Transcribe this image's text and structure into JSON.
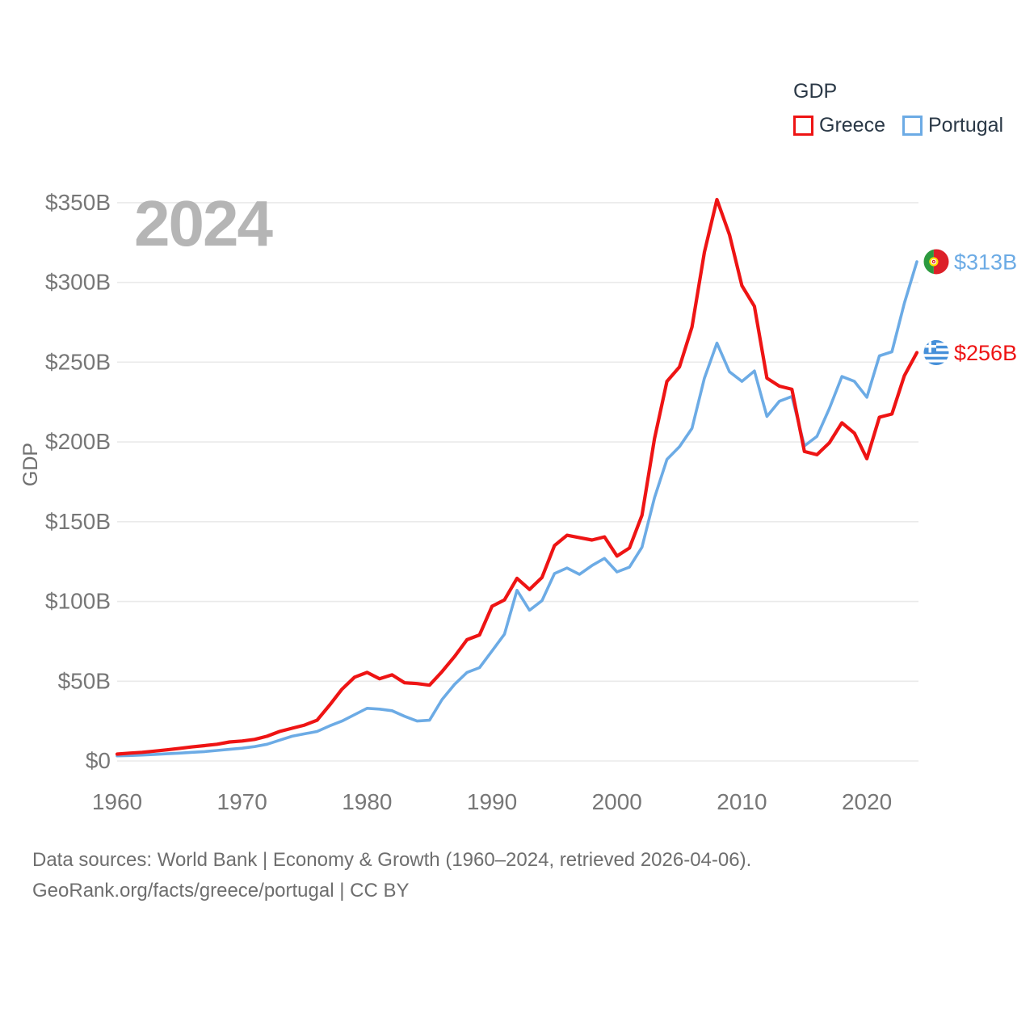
{
  "legend": {
    "title": "GDP",
    "items": [
      {
        "label": "Greece",
        "color": "#ee1414"
      },
      {
        "label": "Portugal",
        "color": "#6cabe5"
      }
    ]
  },
  "footer": {
    "line1": "Data sources: World Bank | Economy & Growth (1960–2024, retrieved 2026-04-06).",
    "line2": "GeoRank.org/facts/greece/portugal | CC BY"
  },
  "chart_data": {
    "type": "line",
    "title": "GDP",
    "ylabel": "GDP",
    "watermark": "2024",
    "grid": "horizontal",
    "legend_position": "top-right",
    "ylim": [
      0,
      350
    ],
    "x_ticks": [
      1960,
      1970,
      1980,
      1990,
      2000,
      2010,
      2020
    ],
    "y_ticks": [
      {
        "value": 0,
        "label": "$0"
      },
      {
        "value": 50,
        "label": "$50B"
      },
      {
        "value": 100,
        "label": "$100B"
      },
      {
        "value": 150,
        "label": "$150B"
      },
      {
        "value": 200,
        "label": "$200B"
      },
      {
        "value": 250,
        "label": "$250B"
      },
      {
        "value": 300,
        "label": "$300B"
      },
      {
        "value": 350,
        "label": "$350B"
      }
    ],
    "x": [
      1960,
      1961,
      1962,
      1963,
      1964,
      1965,
      1966,
      1967,
      1968,
      1969,
      1970,
      1971,
      1972,
      1973,
      1974,
      1975,
      1976,
      1977,
      1978,
      1979,
      1980,
      1981,
      1982,
      1983,
      1984,
      1985,
      1986,
      1987,
      1988,
      1989,
      1990,
      1991,
      1992,
      1993,
      1994,
      1995,
      1996,
      1997,
      1998,
      1999,
      2000,
      2001,
      2002,
      2003,
      2004,
      2005,
      2006,
      2007,
      2008,
      2009,
      2010,
      2011,
      2012,
      2013,
      2014,
      2015,
      2016,
      2017,
      2018,
      2019,
      2020,
      2021,
      2022,
      2023,
      2024
    ],
    "series": [
      {
        "name": "Greece",
        "color": "#ee1414",
        "flag": "greece",
        "end_label": "$256B",
        "line_width": 4.2,
        "values": [
          4.3,
          4.9,
          5.4,
          6.2,
          7.0,
          7.9,
          8.8,
          9.6,
          10.5,
          11.9,
          12.5,
          13.5,
          15.5,
          18.5,
          20.5,
          22.5,
          25.5,
          35.0,
          45.0,
          52.5,
          55.5,
          51.5,
          54.0,
          49.0,
          48.5,
          47.5,
          56.0,
          65.5,
          76.0,
          79.0,
          97.0,
          101.0,
          114.5,
          107.5,
          115.0,
          135.0,
          141.5,
          140.0,
          138.5,
          140.5,
          128.5,
          133.5,
          154.0,
          202.0,
          238.0,
          247.0,
          272.0,
          319.0,
          352.0,
          330.0,
          298.0,
          285.0,
          240.0,
          235.0,
          233.0,
          194.0,
          192.0,
          199.5,
          212.0,
          205.5,
          189.5,
          215.5,
          217.5,
          241.5,
          256.0
        ]
      },
      {
        "name": "Portugal",
        "color": "#6cabe5",
        "flag": "portugal",
        "end_label": "$313B",
        "line_width": 3.6,
        "values": [
          3.2,
          3.4,
          3.7,
          4.1,
          4.5,
          4.9,
          5.4,
          5.9,
          6.6,
          7.3,
          8.0,
          9.0,
          10.5,
          13.0,
          15.5,
          17.0,
          18.5,
          22.0,
          25.0,
          29.0,
          33.0,
          32.5,
          31.5,
          28.0,
          25.0,
          25.5,
          38.5,
          48.0,
          55.5,
          58.5,
          69.0,
          79.5,
          107.0,
          94.5,
          100.5,
          117.5,
          121.0,
          117.0,
          122.5,
          127.0,
          118.5,
          121.5,
          134.0,
          165.0,
          189.0,
          197.0,
          208.5,
          240.0,
          262.0,
          244.0,
          238.0,
          244.5,
          216.0,
          225.5,
          228.5,
          197.5,
          203.5,
          221.0,
          241.0,
          238.0,
          228.0,
          254.0,
          256.5,
          287.0,
          313.0
        ]
      }
    ]
  }
}
